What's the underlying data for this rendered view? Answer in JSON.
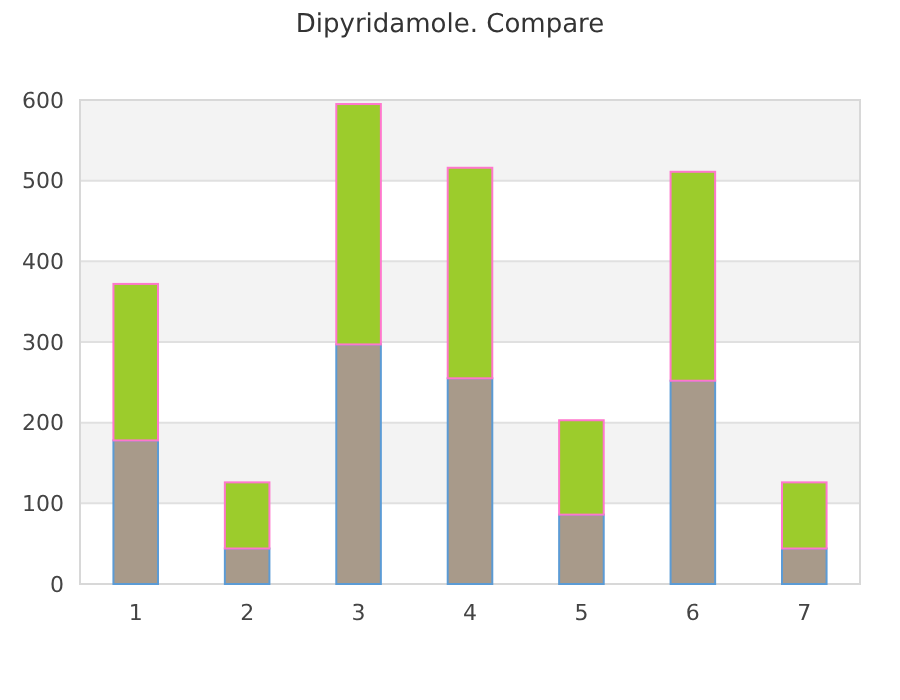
{
  "chart_data": {
    "type": "bar",
    "title": "Dipyridamole. Compare",
    "categories": [
      "1",
      "2",
      "3",
      "4",
      "5",
      "6",
      "7"
    ],
    "stacked": true,
    "series": [
      {
        "color": "#a89a8a",
        "values": [
          178,
          44,
          297,
          255,
          86,
          252,
          44
        ]
      },
      {
        "color": "#9ccc2c",
        "values": [
          194,
          82,
          298,
          261,
          117,
          259,
          82
        ]
      }
    ],
    "ylim": [
      0,
      600
    ],
    "yticks": [
      0,
      100,
      200,
      300,
      400,
      500,
      600
    ],
    "grid": "y"
  }
}
